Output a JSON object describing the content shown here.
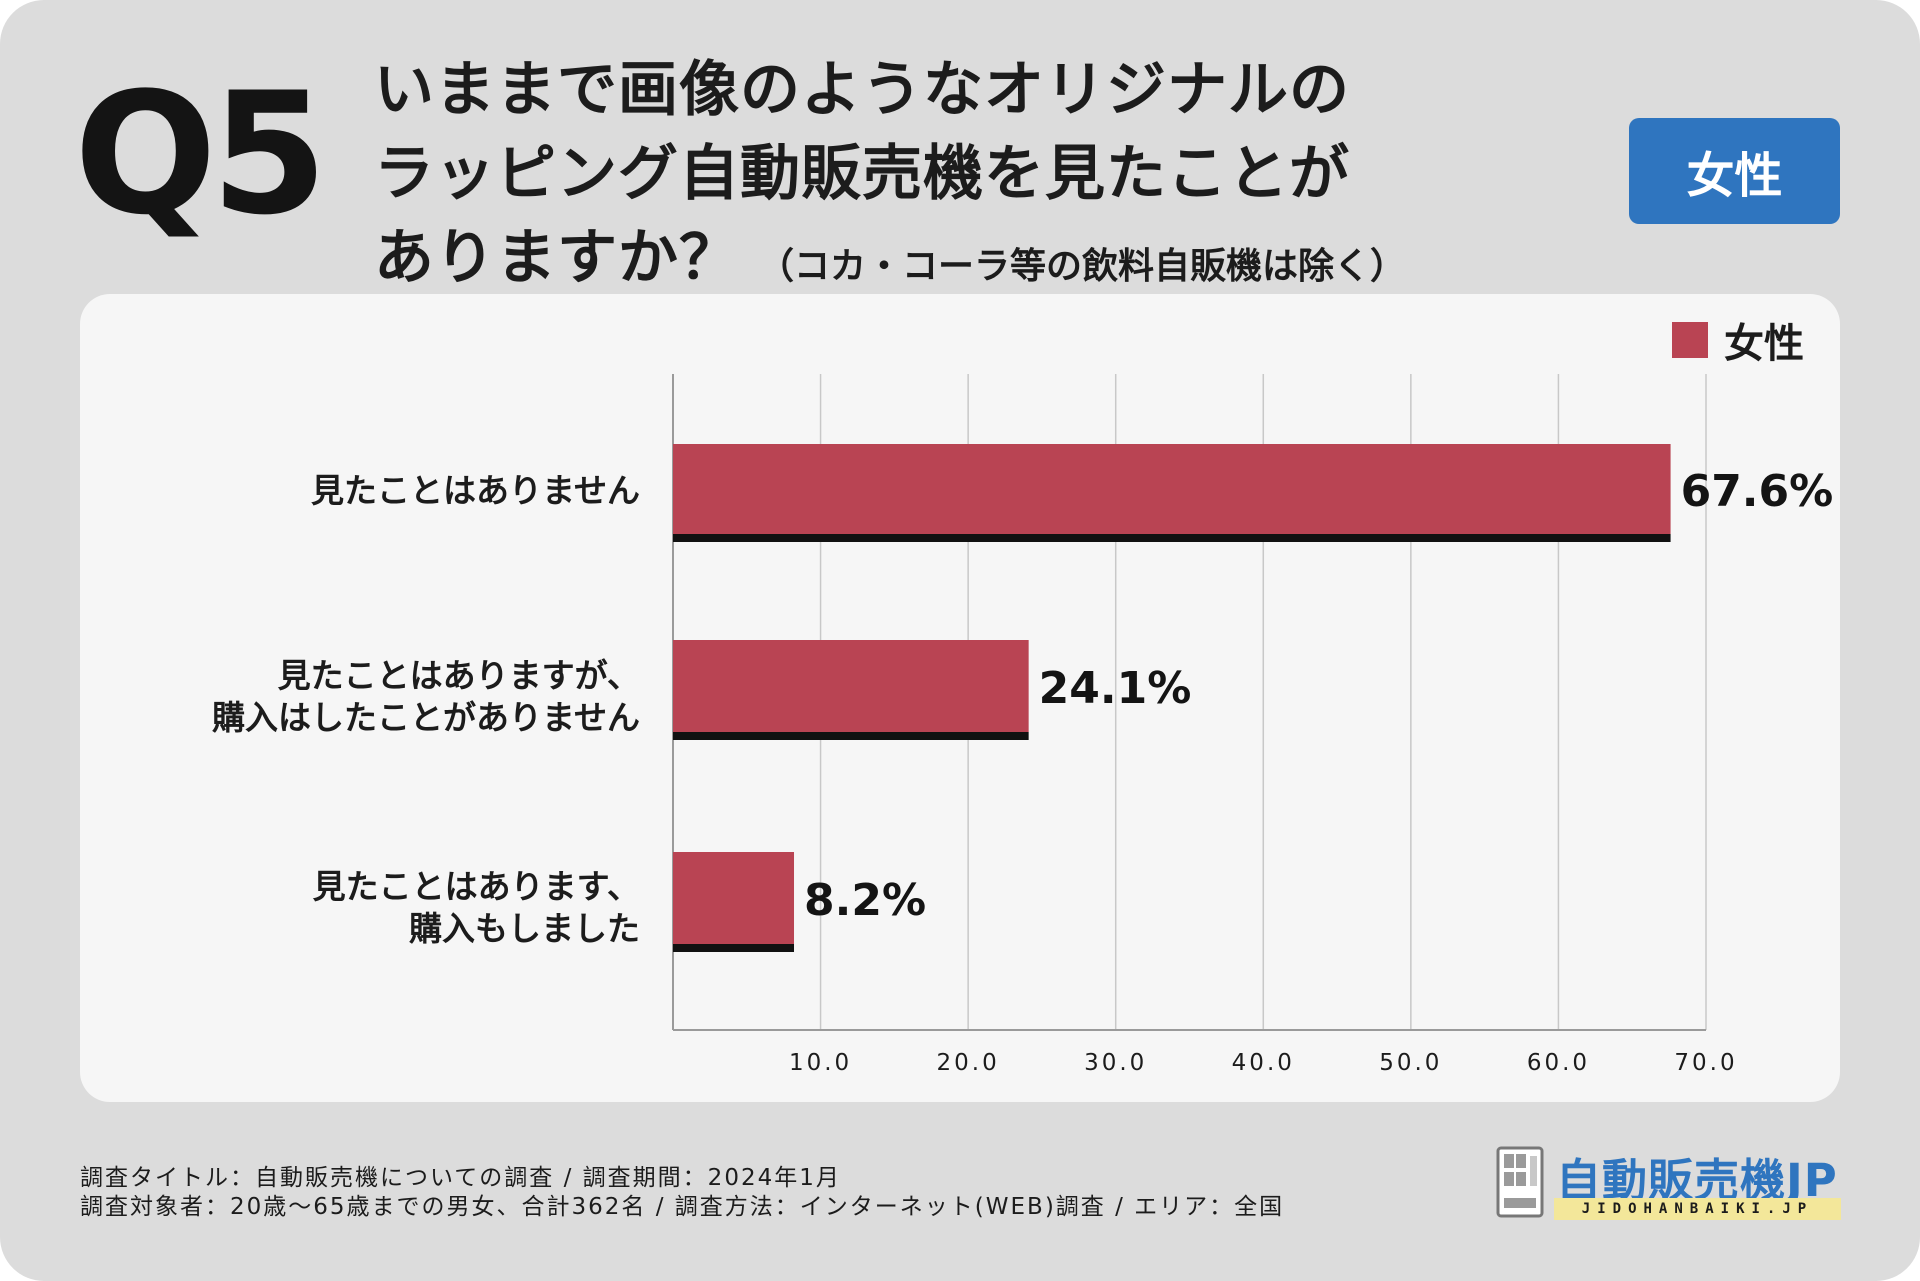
{
  "header": {
    "q_label": "Q5",
    "question_lines": [
      "いままで画像のようなオリジナルの",
      "ラッピング自動販売機を見たことが",
      "ありますか？"
    ],
    "question_note": "（コカ・コーラ等の飲料自販機は除く）",
    "badge": "女性"
  },
  "chart_data": {
    "type": "bar",
    "orientation": "horizontal",
    "categories": [
      [
        "見たことはありません"
      ],
      [
        "見たことはありますが、",
        "購入はしたことがありません"
      ],
      [
        "見たことはあります、",
        "購入もしました"
      ]
    ],
    "series": [
      {
        "name": "女性",
        "values": [
          67.6,
          24.1,
          8.2
        ]
      }
    ],
    "value_labels": [
      "67.6%",
      "24.1%",
      "8.2%"
    ],
    "xlim": [
      0,
      70
    ],
    "xticks": [
      10,
      20,
      30,
      40,
      50,
      60,
      70
    ],
    "xtick_labels": [
      "10.0",
      "20.0",
      "30.0",
      "40.0",
      "50.0",
      "60.0",
      "70.0"
    ],
    "grid": true,
    "legend_position": "top-right",
    "bar_color": "#b94453",
    "shadow_color": "#111111"
  },
  "footer": {
    "line1": "調査タイトル：自動販売機についての調査 / 調査期間：2024年1月",
    "line2": "調査対象者：20歳〜65歳までの男女、合計362名 / 調査方法：インターネット(WEB)調査 / エリア：全国"
  },
  "logo": {
    "text": "自動販売機JP",
    "subtext": "JIDOHANBAIKI.JP",
    "icon": "vending-machine-icon"
  },
  "colors": {
    "background": "#dcdcdc",
    "panel": "#f6f6f6",
    "accent": "#2f75bf",
    "bar": "#b94453"
  }
}
